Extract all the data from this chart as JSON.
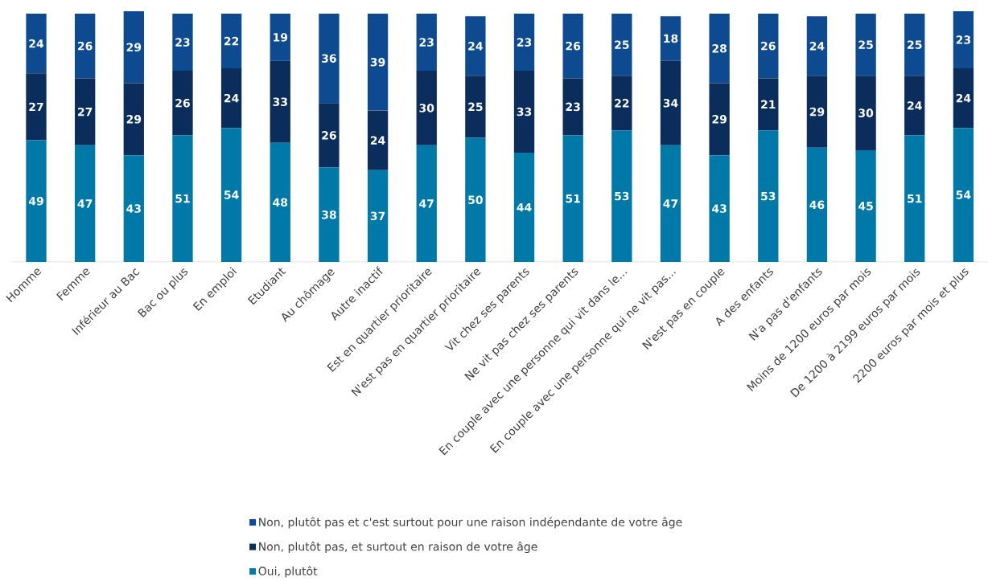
{
  "chart_data": {
    "type": "bar",
    "stacked": true,
    "data_labels": true,
    "legend": "bottom",
    "categories": [
      "Homme",
      "Femme",
      "Inférieur au Bac",
      "Bac ou plus",
      "En emploi",
      "Etudiant",
      "Au chômage",
      "Autre inactif",
      "Est en quartier prioritaire",
      "N'est pas en quartier prioritaire",
      "Vit chez ses parents",
      "Ne vit pas chez ses parents",
      "En couple avec une personne qui vit dans le...",
      "En couple avec une personne qui ne vit pas...",
      "N'est pas en couple",
      "A des enfants",
      "N'a pas d'enfants",
      "Moins de 1200 euros par mois",
      "De 1200 à 2199 euros par mois",
      "2200 euros par mois et plus"
    ],
    "series": [
      {
        "name": "Oui, plutôt",
        "color": "#0079a8",
        "values": [
          49,
          47,
          43,
          51,
          54,
          48,
          38,
          37,
          47,
          50,
          44,
          51,
          53,
          47,
          43,
          53,
          46,
          45,
          51,
          54
        ]
      },
      {
        "name": "Non, plutôt pas, et surtout en raison de votre âge",
        "color": "#0b2d5c",
        "values": [
          27,
          27,
          29,
          26,
          24,
          33,
          26,
          24,
          30,
          25,
          33,
          23,
          22,
          34,
          29,
          21,
          29,
          30,
          24,
          24
        ]
      },
      {
        "name": "Non, plutôt pas et c'est surtout pour une raison indépendante de votre âge",
        "color": "#0d4a90",
        "values": [
          24,
          26,
          29,
          23,
          22,
          19,
          36,
          39,
          23,
          24,
          23,
          26,
          25,
          18,
          28,
          26,
          24,
          25,
          25,
          23
        ]
      }
    ]
  }
}
